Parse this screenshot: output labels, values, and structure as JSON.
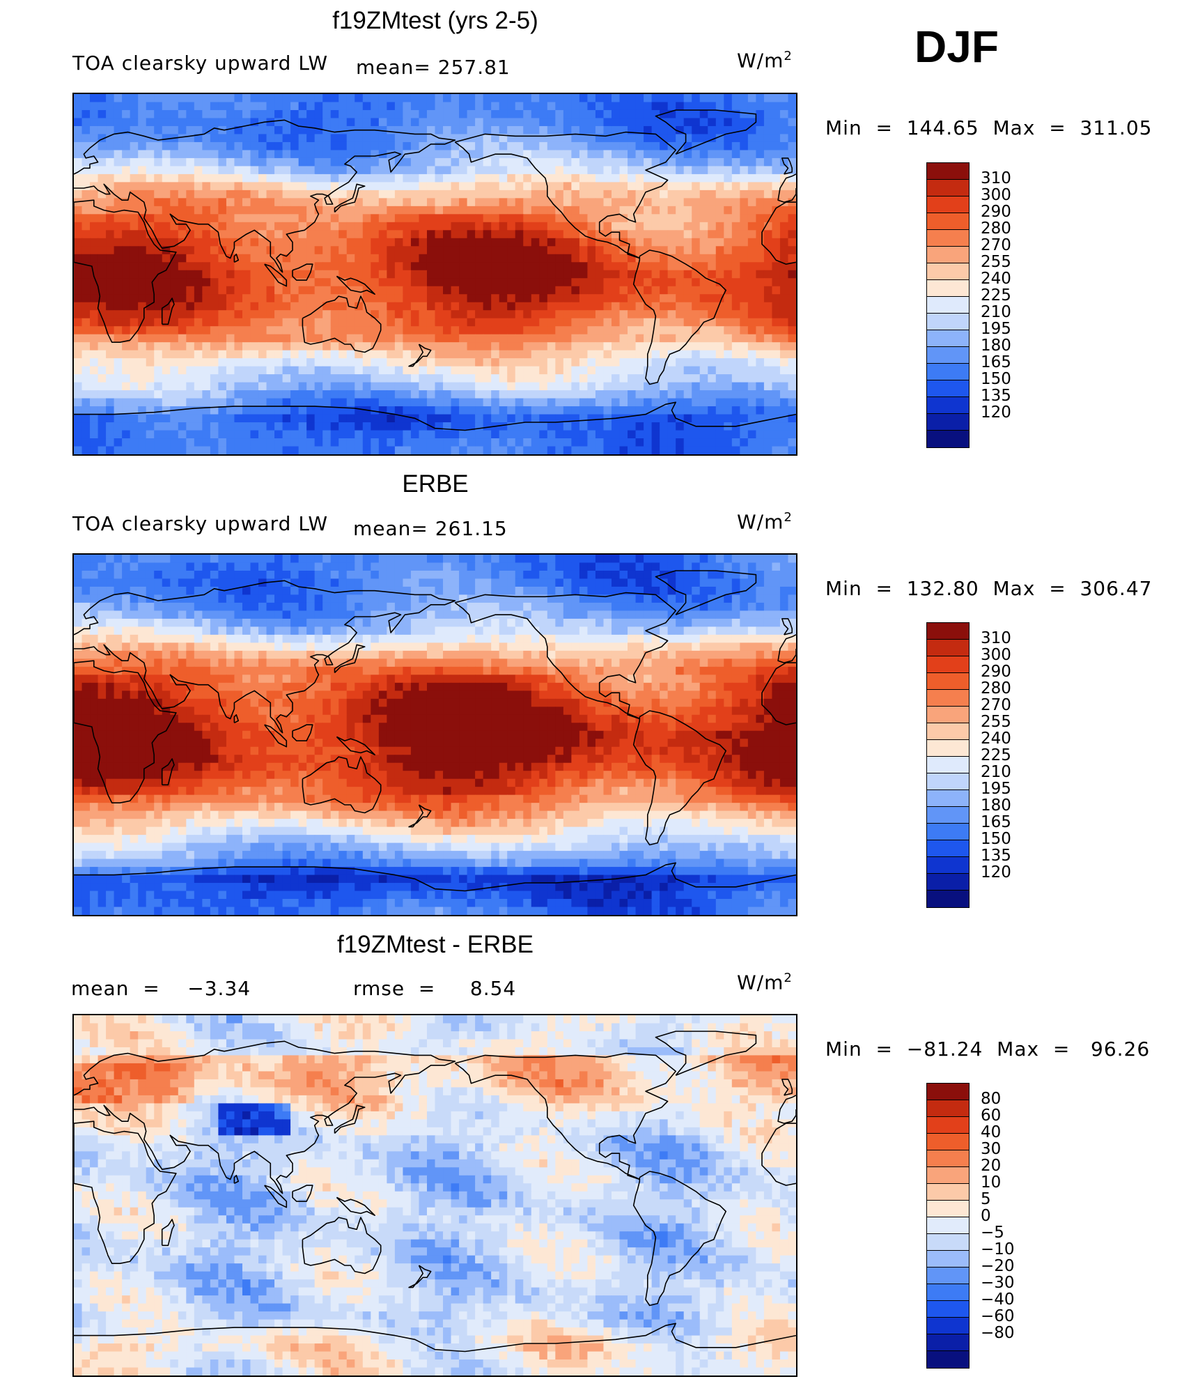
{
  "season": "DJF",
  "units_base": "W/m",
  "units_exp": "2",
  "panels": [
    {
      "title": "f19ZMtest (yrs 2-5)",
      "variable": "TOA clearsky upward LW",
      "mean_text": "mean= 257.81",
      "minmax": "Min  =  144.65  Max  =  311.05",
      "legend_labels": [
        "310",
        "300",
        "290",
        "280",
        "270",
        "255",
        "240",
        "225",
        "210",
        "195",
        "180",
        "165",
        "150",
        "135",
        "120"
      ],
      "style": "abs",
      "field": {
        "bands": [
          [
            75,
            0
          ],
          [
            63,
            1
          ],
          [
            52,
            3
          ],
          [
            42,
            6
          ],
          [
            30,
            8
          ],
          [
            15,
            10
          ],
          [
            0,
            11
          ],
          [
            -15,
            10
          ],
          [
            -30,
            8
          ],
          [
            -42,
            5
          ],
          [
            -55,
            3
          ],
          [
            -63,
            1
          ],
          [
            -72,
            -1
          ],
          [
            -90,
            0
          ]
        ]
      }
    },
    {
      "title": "ERBE",
      "variable": "TOA clearsky upward LW",
      "mean_text": "mean= 261.15",
      "minmax": "Min  =  132.80  Max  =  306.47",
      "legend_labels": [
        "310",
        "300",
        "290",
        "280",
        "270",
        "255",
        "240",
        "225",
        "210",
        "195",
        "180",
        "165",
        "150",
        "135",
        "120"
      ],
      "style": "abs",
      "field": {
        "bands": [
          [
            75,
            0
          ],
          [
            63,
            1
          ],
          [
            52,
            3
          ],
          [
            42,
            6
          ],
          [
            30,
            9
          ],
          [
            15,
            11
          ],
          [
            0,
            12
          ],
          [
            -15,
            11
          ],
          [
            -30,
            9
          ],
          [
            -42,
            6
          ],
          [
            -55,
            3
          ],
          [
            -63,
            1
          ],
          [
            -72,
            -2
          ],
          [
            -90,
            0
          ]
        ]
      }
    },
    {
      "title": "f19ZMtest - ERBE",
      "mean_text": "mean  =    −3.34",
      "rmse_text": "rmse  =     8.54",
      "minmax": "Min  =  −81.24  Max  =   96.26",
      "legend_labels": [
        "80",
        "60",
        "40",
        "30",
        "20",
        "10",
        "5",
        "0",
        "−5",
        "−10",
        "−20",
        "−30",
        "−40",
        "−60",
        "−80"
      ],
      "style": "diff",
      "field": {
        "bands": [
          [
            70,
            2
          ],
          [
            55,
            2
          ],
          [
            40,
            0
          ],
          [
            25,
            -1
          ],
          [
            10,
            -1
          ],
          [
            -10,
            -1
          ],
          [
            -25,
            -1
          ],
          [
            -45,
            -1
          ],
          [
            -60,
            -1
          ],
          [
            -75,
            1
          ],
          [
            -90,
            0
          ]
        ]
      }
    }
  ],
  "colors": {
    "abs": [
      "#08107f",
      "#0a1fa8",
      "#0f35d0",
      "#1e57ee",
      "#3d7bf5",
      "#6195f7",
      "#8db3fa",
      "#c0d5fb",
      "#dfeafc",
      "#fde7d4",
      "#fccaa9",
      "#f9a47b",
      "#f57f4e",
      "#ee5e2b",
      "#e2401a",
      "#c42b10",
      "#8b0f0b"
    ],
    "diff": [
      "#08107f",
      "#0a1fa8",
      "#0f35d0",
      "#1e57ee",
      "#3d7bf5",
      "#6195f7",
      "#9bbcfa",
      "#c8daf9",
      "#e1ebfb",
      "#fde7d4",
      "#fccaa9",
      "#f9a47b",
      "#f57f4e",
      "#ee5e2b",
      "#e2401a",
      "#c42b10",
      "#8b0f0b"
    ]
  }
}
